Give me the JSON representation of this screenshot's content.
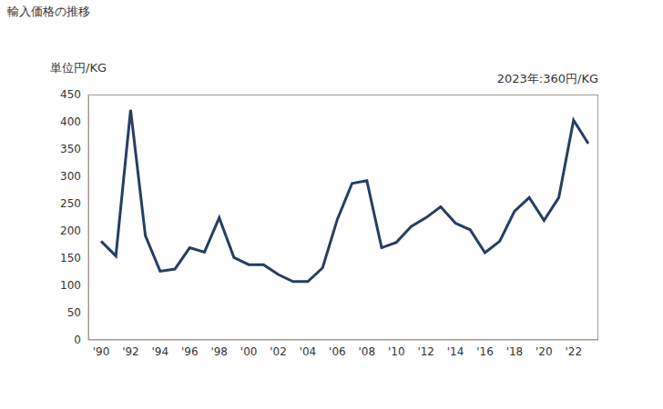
{
  "chart_data": {
    "type": "line",
    "title": "輸入価格の推移",
    "y_label": "単位円/KG",
    "annotation": "2023年:360円/KG",
    "categories": [
      "'90",
      null,
      "'92",
      null,
      "'94",
      null,
      "'96",
      null,
      "'98",
      null,
      "'00",
      null,
      "'02",
      null,
      "'04",
      null,
      "'06",
      null,
      "'08",
      null,
      "'10",
      null,
      "'12",
      null,
      "'14",
      null,
      "'16",
      null,
      "'18",
      null,
      "'20",
      null,
      "'22",
      null
    ],
    "values": [
      181,
      154,
      422,
      191,
      126,
      130,
      169,
      161,
      224,
      151,
      138,
      138,
      120,
      107,
      107,
      132,
      221,
      287,
      292,
      169,
      179,
      208,
      224,
      244,
      214,
      202,
      160,
      181,
      236,
      261,
      219,
      261,
      403,
      360
    ],
    "color": "#253f63",
    "ylim": [
      0,
      450
    ],
    "yticks": [
      0,
      50,
      100,
      150,
      200,
      250,
      300,
      350,
      400,
      450
    ],
    "grid": false
  }
}
